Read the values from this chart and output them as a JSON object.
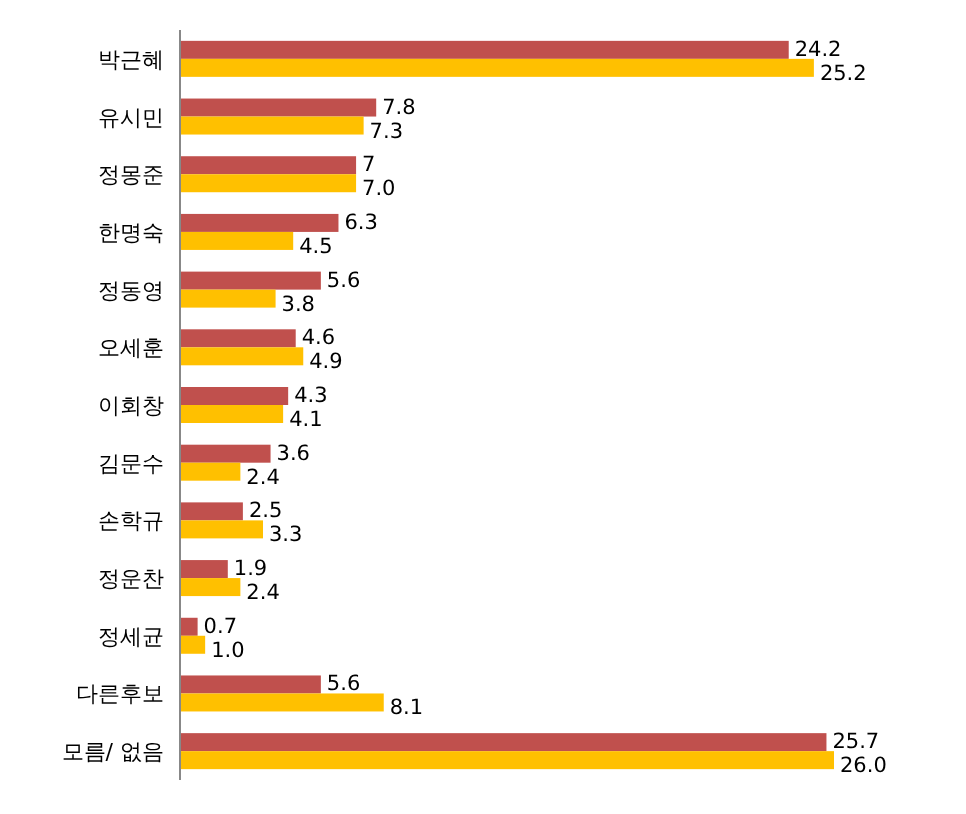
{
  "chart_data": {
    "type": "bar",
    "orientation": "horizontal",
    "categories": [
      "박근혜",
      "유시민",
      "정몽준",
      "한명숙",
      "정동영",
      "오세훈",
      "이회창",
      "김문수",
      "손학규",
      "정운찬",
      "정세균",
      "다른후보",
      "모름/ 없음"
    ],
    "series": [
      {
        "color": "#c0504d",
        "values": [
          24.2,
          7.8,
          7,
          6.3,
          5.6,
          4.6,
          4.3,
          3.6,
          2.5,
          1.9,
          0.7,
          5.6,
          25.7
        ],
        "value_labels": [
          "24.2",
          "7.8",
          "7",
          "6.3",
          "5.6",
          "4.6",
          "4.3",
          "3.6",
          "2.5",
          "1.9",
          "0.7",
          "5.6",
          "25.7"
        ]
      },
      {
        "color": "#ffc000",
        "values": [
          25.2,
          7.3,
          7.0,
          4.5,
          3.8,
          4.9,
          4.1,
          2.4,
          3.3,
          2.4,
          1.0,
          8.1,
          26.0
        ],
        "value_labels": [
          "25.2",
          "7.3",
          "7.0",
          "4.5",
          "3.8",
          "4.9",
          "4.1",
          "2.4",
          "3.3",
          "2.4",
          "1.0",
          "8.1",
          "26.0"
        ]
      }
    ]
  }
}
